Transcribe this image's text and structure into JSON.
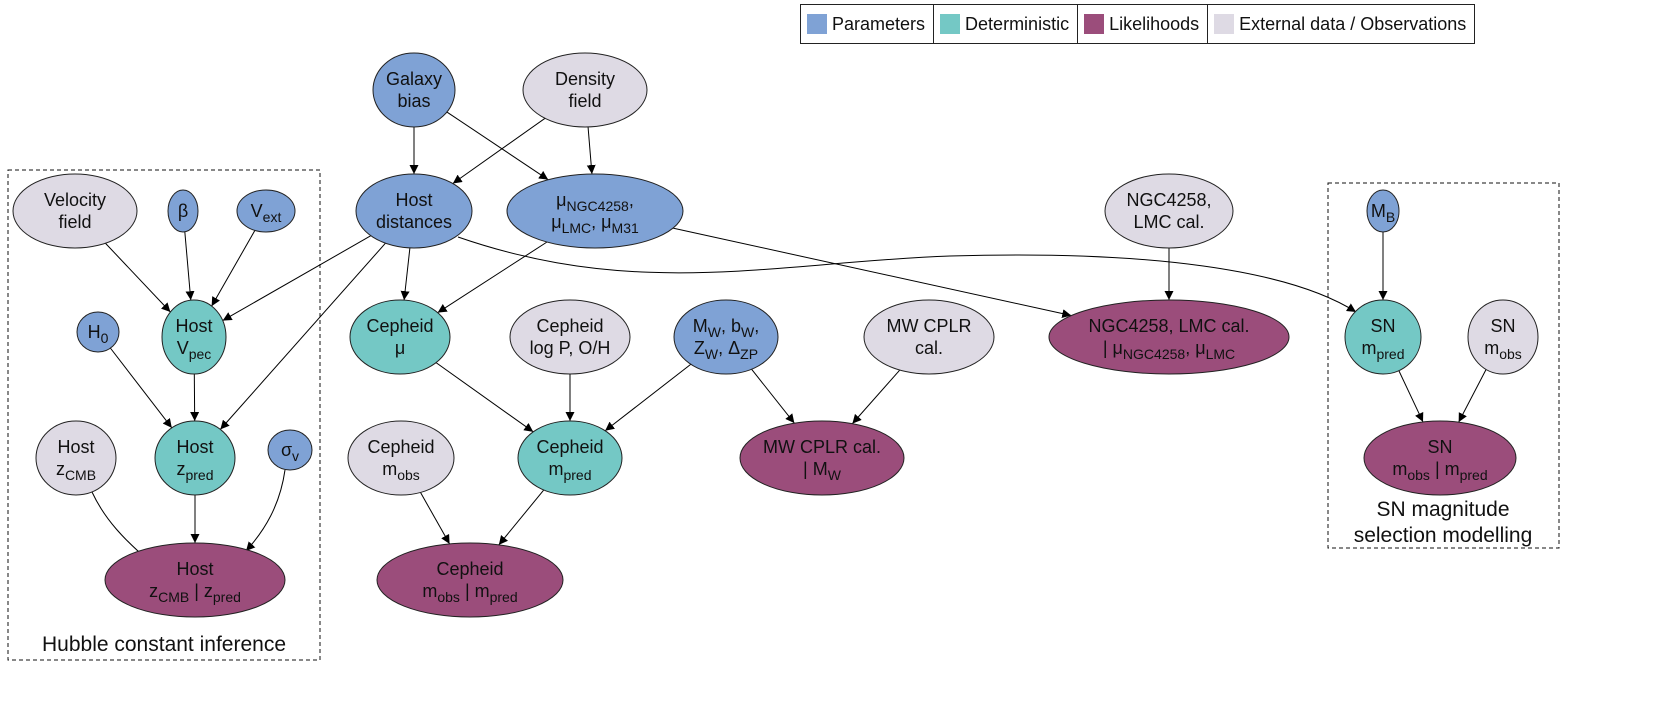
{
  "colors": {
    "parameter": "#7fa2d5",
    "deterministic": "#74c8c5",
    "likelihood": "#9b4d7b",
    "external": "#dedae4"
  },
  "legend": [
    {
      "type": "parameter",
      "label": "Parameters"
    },
    {
      "type": "deterministic",
      "label": "Deterministic"
    },
    {
      "type": "likelihood",
      "label": "Likelihoods"
    },
    {
      "type": "external",
      "label": "External data / Observations"
    }
  ],
  "groups": {
    "hubble": {
      "label": "Hubble constant inference"
    },
    "sn": {
      "label_line1": "SN magnitude",
      "label_line2": "selection modelling"
    }
  },
  "nodes": [
    {
      "id": "galaxy_bias",
      "type": "parameter",
      "lines": [
        [
          {
            "t": "Galaxy"
          }
        ],
        [
          {
            "t": "bias"
          }
        ]
      ]
    },
    {
      "id": "density_field",
      "type": "external",
      "lines": [
        [
          {
            "t": "Density"
          }
        ],
        [
          {
            "t": "field"
          }
        ]
      ]
    },
    {
      "id": "velocity_field",
      "type": "external",
      "lines": [
        [
          {
            "t": "Velocity"
          }
        ],
        [
          {
            "t": "field"
          }
        ]
      ]
    },
    {
      "id": "beta",
      "type": "parameter",
      "lines": [
        [
          {
            "t": "β"
          }
        ]
      ]
    },
    {
      "id": "v_ext",
      "type": "parameter",
      "lines": [
        [
          {
            "t": "V"
          },
          {
            "t": "ext",
            "sub": true
          }
        ]
      ]
    },
    {
      "id": "host_distances",
      "type": "parameter",
      "lines": [
        [
          {
            "t": "Host"
          }
        ],
        [
          {
            "t": "distances"
          }
        ]
      ]
    },
    {
      "id": "mu_anchors",
      "type": "parameter",
      "lines": [
        [
          {
            "t": "μ"
          },
          {
            "t": "NGC4258",
            "sub": true
          },
          {
            "t": ","
          }
        ],
        [
          {
            "t": "μ"
          },
          {
            "t": "LMC",
            "sub": true
          },
          {
            "t": ", μ"
          },
          {
            "t": "M31",
            "sub": true
          }
        ]
      ]
    },
    {
      "id": "ngc_lmc_cal",
      "type": "external",
      "lines": [
        [
          {
            "t": "NGC4258,"
          }
        ],
        [
          {
            "t": "LMC cal."
          }
        ]
      ]
    },
    {
      "id": "m_b",
      "type": "parameter",
      "lines": [
        [
          {
            "t": "M"
          },
          {
            "t": "B",
            "sub": true
          }
        ]
      ]
    },
    {
      "id": "h0",
      "type": "parameter",
      "lines": [
        [
          {
            "t": "H"
          },
          {
            "t": "0",
            "sub": true
          }
        ]
      ]
    },
    {
      "id": "host_vpec",
      "type": "deterministic",
      "lines": [
        [
          {
            "t": "Host"
          }
        ],
        [
          {
            "t": "V"
          },
          {
            "t": "pec",
            "sub": true
          }
        ]
      ]
    },
    {
      "id": "cepheid_mu",
      "type": "deterministic",
      "lines": [
        [
          {
            "t": "Cepheid"
          }
        ],
        [
          {
            "t": "μ"
          }
        ]
      ]
    },
    {
      "id": "cepheid_logp",
      "type": "external",
      "lines": [
        [
          {
            "t": "Cepheid"
          }
        ],
        [
          {
            "t": "log P, O/H"
          }
        ]
      ]
    },
    {
      "id": "mw_params",
      "type": "parameter",
      "lines": [
        [
          {
            "t": "M"
          },
          {
            "t": "W",
            "sub": true
          },
          {
            "t": ", b"
          },
          {
            "t": "W",
            "sub": true
          },
          {
            "t": ","
          }
        ],
        [
          {
            "t": "Z"
          },
          {
            "t": "W",
            "sub": true
          },
          {
            "t": ", Δ"
          },
          {
            "t": "ZP",
            "sub": true
          }
        ]
      ]
    },
    {
      "id": "mw_cplr_cal",
      "type": "external",
      "lines": [
        [
          {
            "t": "MW CPLR"
          }
        ],
        [
          {
            "t": "cal."
          }
        ]
      ]
    },
    {
      "id": "ngc_lmc_lik",
      "type": "likelihood",
      "lines": [
        [
          {
            "t": "NGC4258, LMC cal."
          }
        ],
        [
          {
            "t": "| μ"
          },
          {
            "t": "NGC4258",
            "sub": true
          },
          {
            "t": ", μ"
          },
          {
            "t": "LMC",
            "sub": true
          }
        ]
      ]
    },
    {
      "id": "sn_mpred",
      "type": "deterministic",
      "lines": [
        [
          {
            "t": "SN"
          }
        ],
        [
          {
            "t": "m"
          },
          {
            "t": "pred",
            "sub": true
          }
        ]
      ]
    },
    {
      "id": "sn_mobs",
      "type": "external",
      "lines": [
        [
          {
            "t": "SN"
          }
        ],
        [
          {
            "t": "m"
          },
          {
            "t": "obs",
            "sub": true
          }
        ]
      ]
    },
    {
      "id": "host_zcmb",
      "type": "external",
      "lines": [
        [
          {
            "t": "Host"
          }
        ],
        [
          {
            "t": "z"
          },
          {
            "t": "CMB",
            "sub": true
          }
        ]
      ]
    },
    {
      "id": "host_zpred",
      "type": "deterministic",
      "lines": [
        [
          {
            "t": "Host"
          }
        ],
        [
          {
            "t": "z"
          },
          {
            "t": "pred",
            "sub": true
          }
        ]
      ]
    },
    {
      "id": "sigma_v",
      "type": "parameter",
      "lines": [
        [
          {
            "t": "σ"
          },
          {
            "t": "v",
            "sub": true
          }
        ]
      ]
    },
    {
      "id": "cepheid_mobs",
      "type": "external",
      "lines": [
        [
          {
            "t": "Cepheid"
          }
        ],
        [
          {
            "t": "m"
          },
          {
            "t": "obs",
            "sub": true
          }
        ]
      ]
    },
    {
      "id": "cepheid_mpred",
      "type": "deterministic",
      "lines": [
        [
          {
            "t": "Cepheid"
          }
        ],
        [
          {
            "t": "m"
          },
          {
            "t": "pred",
            "sub": true
          }
        ]
      ]
    },
    {
      "id": "mw_cplr_lik",
      "type": "likelihood",
      "lines": [
        [
          {
            "t": "MW CPLR cal."
          }
        ],
        [
          {
            "t": "| M"
          },
          {
            "t": "W",
            "sub": true
          }
        ]
      ]
    },
    {
      "id": "sn_lik",
      "type": "likelihood",
      "lines": [
        [
          {
            "t": "SN"
          }
        ],
        [
          {
            "t": "m"
          },
          {
            "t": "obs",
            "sub": true
          },
          {
            "t": " | m"
          },
          {
            "t": "pred",
            "sub": true
          }
        ]
      ]
    },
    {
      "id": "host_lik",
      "type": "likelihood",
      "lines": [
        [
          {
            "t": "Host"
          }
        ],
        [
          {
            "t": "z"
          },
          {
            "t": "CMB",
            "sub": true
          },
          {
            "t": " | z"
          },
          {
            "t": "pred",
            "sub": true
          }
        ]
      ]
    },
    {
      "id": "cepheid_lik",
      "type": "likelihood",
      "lines": [
        [
          {
            "t": "Cepheid"
          }
        ],
        [
          {
            "t": "m"
          },
          {
            "t": "obs",
            "sub": true
          },
          {
            "t": " | m"
          },
          {
            "t": "pred",
            "sub": true
          }
        ]
      ]
    }
  ],
  "edges": [
    [
      "galaxy_bias",
      "host_distances"
    ],
    [
      "galaxy_bias",
      "mu_anchors"
    ],
    [
      "density_field",
      "host_distances"
    ],
    [
      "density_field",
      "mu_anchors"
    ],
    [
      "velocity_field",
      "host_vpec"
    ],
    [
      "beta",
      "host_vpec"
    ],
    [
      "v_ext",
      "host_vpec"
    ],
    [
      "host_distances",
      "host_vpec"
    ],
    [
      "host_distances",
      "host_zpred"
    ],
    [
      "host_distances",
      "cepheid_mu"
    ],
    [
      "host_distances",
      "sn_mpred"
    ],
    [
      "mu_anchors",
      "cepheid_mu"
    ],
    [
      "mu_anchors",
      "ngc_lmc_lik"
    ],
    [
      "ngc_lmc_cal",
      "ngc_lmc_lik"
    ],
    [
      "m_b",
      "sn_mpred"
    ],
    [
      "h0",
      "host_zpred"
    ],
    [
      "host_vpec",
      "host_zpred"
    ],
    [
      "cepheid_mu",
      "cepheid_mpred"
    ],
    [
      "cepheid_logp",
      "cepheid_mpred"
    ],
    [
      "mw_params",
      "cepheid_mpred"
    ],
    [
      "mw_params",
      "mw_cplr_lik"
    ],
    [
      "mw_cplr_cal",
      "mw_cplr_lik"
    ],
    [
      "sn_mpred",
      "sn_lik"
    ],
    [
      "sn_mobs",
      "sn_lik"
    ],
    [
      "host_zcmb",
      "host_lik"
    ],
    [
      "host_zpred",
      "host_lik"
    ],
    [
      "sigma_v",
      "host_lik"
    ],
    [
      "cepheid_mobs",
      "cepheid_lik"
    ],
    [
      "cepheid_mpred",
      "cepheid_lik"
    ]
  ]
}
